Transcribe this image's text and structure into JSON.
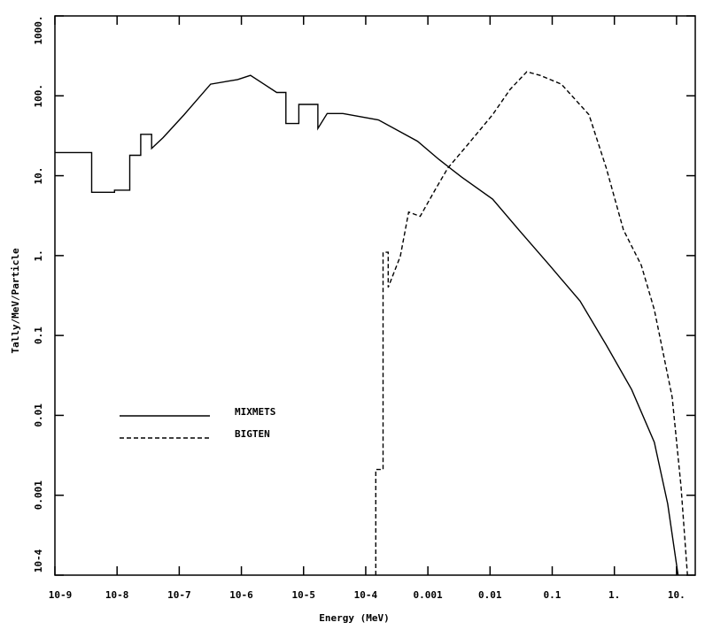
{
  "chart_data": {
    "type": "line",
    "x_label": "Energy (MeV)",
    "y_label": "Tally/MeV/Particle",
    "log_x": true,
    "log_y": true,
    "xlim": [
      1e-09,
      20
    ],
    "ylim": [
      0.0001,
      1000
    ],
    "xticks": [
      {
        "value": 1e-09,
        "label": "10-9"
      },
      {
        "value": 1e-08,
        "label": "10-8"
      },
      {
        "value": 1e-07,
        "label": "10-7"
      },
      {
        "value": 1e-06,
        "label": "10-6"
      },
      {
        "value": 1e-05,
        "label": "10-5"
      },
      {
        "value": 0.0001,
        "label": "10-4"
      },
      0.001,
      0.01,
      0.1,
      {
        "value": 1,
        "label": "1."
      },
      {
        "value": 10,
        "label": "10."
      }
    ],
    "yticks": [
      {
        "value": 0.0001,
        "label": "10-4"
      },
      0.001,
      0.01,
      0.1,
      {
        "value": 1,
        "label": "1."
      },
      {
        "value": 10,
        "label": "10."
      },
      {
        "value": 100,
        "label": "100."
      },
      {
        "value": 1000,
        "label": "1000."
      }
    ],
    "series": [
      {
        "name": "MIXMETS",
        "color": "#000000",
        "dash": "solid",
        "x": [
          1e-09,
          3.9e-09,
          3.9e-09,
          9.1e-09,
          9.1e-09,
          1.6e-08,
          1.6e-08,
          2.4e-08,
          2.4e-08,
          3.6e-08,
          3.6e-08,
          5.5e-08,
          1.2e-07,
          3.2e-07,
          8.7e-07,
          1.4e-06,
          2.3e-06,
          3.7e-06,
          5.2e-06,
          5.2e-06,
          8.4e-06,
          8.4e-06,
          1.7e-05,
          1.7e-05,
          2.4e-05,
          4.3e-05,
          0.00016,
          0.00068,
          0.0015,
          0.0035,
          0.011,
          0.029,
          0.09,
          0.28,
          0.74,
          1.9,
          4.4,
          7.2,
          10.6
        ],
        "values": [
          19.5,
          19.5,
          6.2,
          6.2,
          6.6,
          6.6,
          18,
          18,
          33,
          33,
          22,
          30,
          58,
          140,
          160,
          180,
          140,
          110,
          110,
          45,
          45,
          78,
          78,
          39,
          60,
          60,
          50,
          27,
          16,
          9.6,
          5.1,
          2.1,
          0.76,
          0.27,
          0.076,
          0.021,
          0.0046,
          0.00078,
          0.0001
        ]
      },
      {
        "name": "BIGTEN",
        "color": "#000000",
        "dash": "dashed",
        "x": [
          0.000145,
          0.000145,
          0.00019,
          0.00019,
          0.00023,
          0.00023,
          0.00036,
          0.00049,
          0.00075,
          0.0013,
          0.0021,
          0.0041,
          0.011,
          0.021,
          0.039,
          0.064,
          0.14,
          0.39,
          0.74,
          1.4,
          2.7,
          4.4,
          8.5,
          11.8,
          15
        ],
        "values": [
          0.0001,
          0.0021,
          0.0021,
          1.1,
          1.1,
          0.4,
          0.98,
          3.5,
          3.1,
          6.6,
          12.5,
          23,
          58,
          120,
          200,
          180,
          140,
          58,
          12.5,
          2.1,
          0.76,
          0.21,
          0.017,
          0.0013,
          0.0001
        ]
      }
    ]
  }
}
